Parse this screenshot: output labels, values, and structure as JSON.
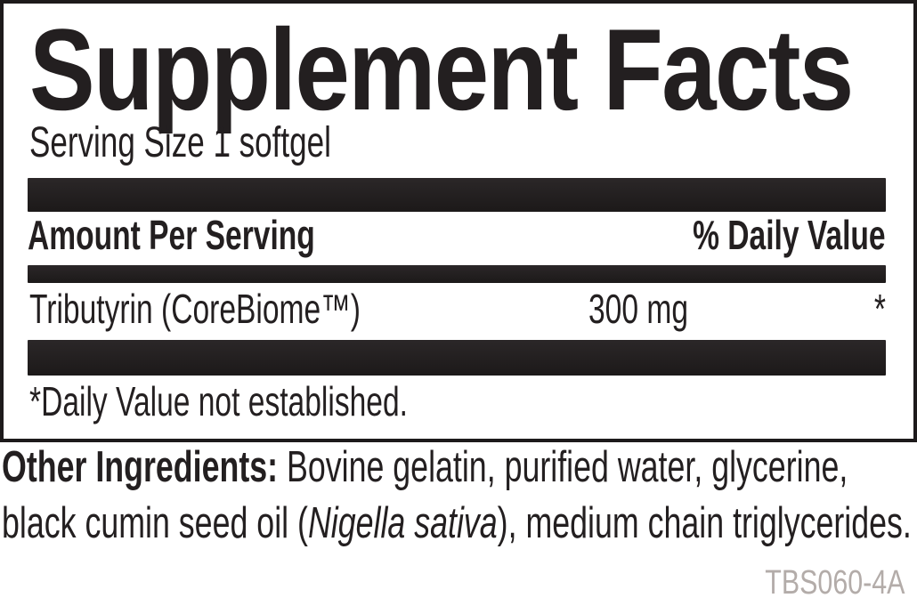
{
  "supplement_facts": {
    "title": "Supplement Facts",
    "serving_size": "Serving Size 1 softgel",
    "columns": {
      "amount_per_serving": "Amount Per Serving",
      "percent_daily_value": "% Daily Value"
    },
    "rows": [
      {
        "name": "Tributyrin (CoreBiome™)",
        "amount": "300 mg",
        "daily_value": "*"
      }
    ],
    "footnote": "*Daily Value not established."
  },
  "other_ingredients": {
    "label": "Other Ingredients:",
    "line1_rest": " Bovine gelatin, purified water, glycerine,",
    "line2_before_italic": "black cumin seed oil (",
    "line2_italic": "Nigella sativa",
    "line2_after_italic": "), medium chain triglycerides."
  },
  "product_code": "TBS060-4A",
  "colors": {
    "ink": "#231f20",
    "bar": "#231f20",
    "border": "#1d1a1b",
    "product_code_gray": "#b3aca9",
    "background": "#ffffff"
  }
}
